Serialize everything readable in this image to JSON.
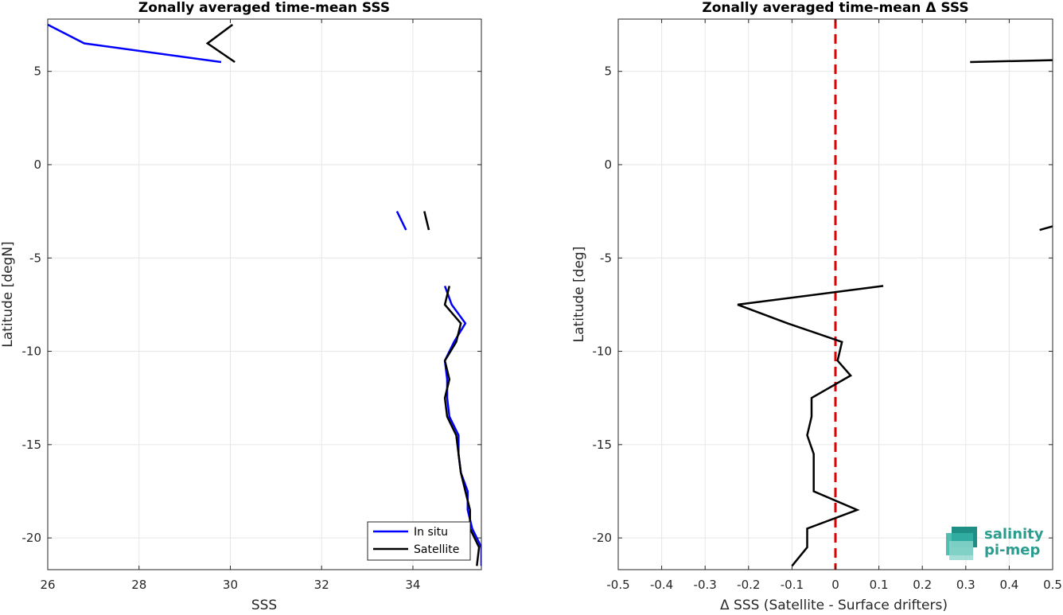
{
  "chart_data": [
    {
      "type": "line",
      "title": "Zonally averaged time-mean SSS",
      "xlabel": "SSS",
      "ylabel": "Latitude [degN]",
      "xlim": [
        26,
        35.5
      ],
      "ylim": [
        -21.7,
        7.8
      ],
      "xticks": [
        "26",
        "28",
        "30",
        "32",
        "34"
      ],
      "yticks": [
        "-20",
        "-15",
        "-10",
        "-5",
        "0",
        "5"
      ],
      "grid": true,
      "legend_position": "bottom-right",
      "series": [
        {
          "name": "In situ",
          "color": "#0000ff",
          "segments": [
            [
              [
                26.0,
                7.5
              ],
              [
                26.8,
                6.5
              ],
              [
                29.8,
                5.5
              ]
            ],
            [
              [
                33.65,
                -2.5
              ],
              [
                33.85,
                -3.5
              ]
            ],
            [
              [
                34.7,
                -6.5
              ],
              [
                34.85,
                -7.5
              ],
              [
                35.15,
                -8.5
              ],
              [
                34.9,
                -9.5
              ],
              [
                34.7,
                -10.5
              ],
              [
                34.75,
                -11.5
              ],
              [
                34.75,
                -12.5
              ],
              [
                34.8,
                -13.5
              ],
              [
                35.0,
                -14.5
              ],
              [
                35.0,
                -15.5
              ],
              [
                35.05,
                -16.5
              ],
              [
                35.2,
                -17.5
              ],
              [
                35.2,
                -18.5
              ],
              [
                35.3,
                -19.5
              ],
              [
                35.5,
                -20.5
              ],
              [
                35.5,
                -21.5
              ]
            ]
          ]
        },
        {
          "name": "Satellite",
          "color": "#000000",
          "segments": [
            [
              [
                30.05,
                7.5
              ],
              [
                29.5,
                6.5
              ],
              [
                30.1,
                5.5
              ]
            ],
            [
              [
                34.25,
                -2.5
              ],
              [
                34.35,
                -3.5
              ]
            ],
            [
              [
                34.8,
                -6.5
              ],
              [
                34.7,
                -7.5
              ],
              [
                35.05,
                -8.5
              ],
              [
                34.95,
                -9.5
              ],
              [
                34.7,
                -10.5
              ],
              [
                34.8,
                -11.5
              ],
              [
                34.7,
                -12.5
              ],
              [
                34.75,
                -13.5
              ],
              [
                34.95,
                -14.5
              ],
              [
                35.0,
                -15.5
              ],
              [
                35.05,
                -16.5
              ],
              [
                35.15,
                -17.5
              ],
              [
                35.25,
                -18.5
              ],
              [
                35.25,
                -19.5
              ],
              [
                35.45,
                -20.5
              ],
              [
                35.4,
                -21.5
              ]
            ]
          ]
        }
      ]
    },
    {
      "type": "line",
      "title": "Zonally averaged time-mean Δ SSS",
      "xlabel": "Δ SSS (Satellite - Surface drifters)",
      "ylabel": "Latitude [deg]",
      "xlim": [
        -0.5,
        0.5
      ],
      "ylim": [
        -21.7,
        7.8
      ],
      "xticks": [
        "-0.5",
        "-0.4",
        "-0.3",
        "-0.2",
        "-0.1",
        "0",
        "0.1",
        "0.2",
        "0.3",
        "0.4",
        "0.5"
      ],
      "yticks": [
        "-20",
        "-15",
        "-10",
        "-5",
        "0",
        "5"
      ],
      "grid": true,
      "reference_line": {
        "x": 0,
        "color": "#e00000",
        "style": "dashed"
      },
      "series": [
        {
          "color": "#000000",
          "segments": [
            [
              [
                0.31,
                5.5
              ],
              [
                0.5,
                5.6
              ]
            ],
            [
              [
                0.47,
                -3.5
              ],
              [
                0.5,
                -3.3
              ]
            ],
            [
              [
                0.11,
                -6.5
              ],
              [
                -0.225,
                -7.5
              ],
              [
                -0.11,
                -8.5
              ],
              [
                0.015,
                -9.5
              ],
              [
                0.005,
                -10.5
              ],
              [
                0.035,
                -11.3
              ],
              [
                -0.055,
                -12.5
              ],
              [
                -0.055,
                -13.5
              ],
              [
                -0.065,
                -14.5
              ],
              [
                -0.05,
                -15.5
              ],
              [
                -0.05,
                -16.5
              ],
              [
                -0.05,
                -17.5
              ],
              [
                0.05,
                -18.5
              ],
              [
                -0.065,
                -19.5
              ],
              [
                -0.065,
                -20.5
              ],
              [
                -0.1,
                -21.5
              ]
            ]
          ]
        }
      ]
    }
  ],
  "legend": {
    "items": [
      {
        "label": "In situ",
        "color": "#0000ff"
      },
      {
        "label": "Satellite",
        "color": "#000000"
      }
    ]
  },
  "logo": {
    "line1": "salinity",
    "line2": "pi-mep",
    "color": "#2a9d8f"
  }
}
